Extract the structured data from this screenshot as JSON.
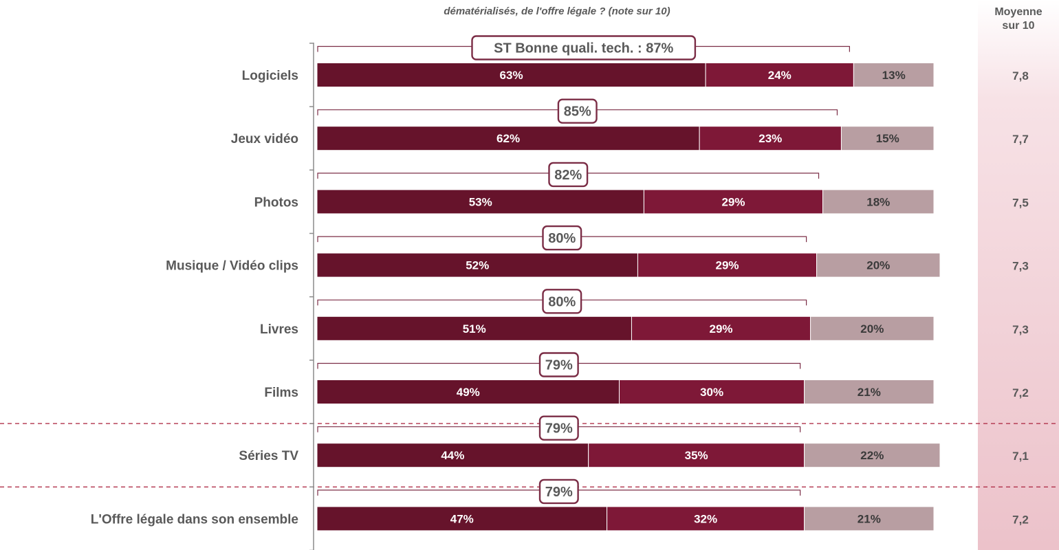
{
  "title": "dématérialisés, de l'offre légale ? (note sur 10)",
  "avg_header": "Moyenne\nsur 10",
  "colors": {
    "seg1": "#66132b",
    "seg2": "#7e1837",
    "seg3": "#b89ea2",
    "bracket": "#7b2d46",
    "label_box_border": "#7b2d46",
    "label_text": "#595959",
    "separator": "#b0304a"
  },
  "chart_data": {
    "type": "bar",
    "orientation": "horizontal",
    "stacked": true,
    "unit": "%",
    "xlim": [
      0,
      100
    ],
    "categories": [
      "Logiciels",
      "Jeux vidéo",
      "Photos",
      "Musique / Vidéo clips",
      "Livres",
      "Films",
      "Séries TV",
      "L'Offre légale dans son ensemble"
    ],
    "series": [
      {
        "values": [
          63,
          62,
          53,
          52,
          51,
          49,
          44,
          47
        ]
      },
      {
        "values": [
          24,
          23,
          29,
          29,
          29,
          30,
          35,
          32
        ]
      },
      {
        "values": [
          13,
          15,
          18,
          20,
          20,
          21,
          22,
          21
        ]
      }
    ],
    "subtotal_labels": [
      "ST Bonne quali. tech. : 87%",
      "85%",
      "82%",
      "80%",
      "80%",
      "79%",
      "79%",
      "79%"
    ],
    "subtotals": [
      87,
      85,
      82,
      80,
      80,
      79,
      79,
      79
    ],
    "averages": [
      "7,8",
      "7,7",
      "7,5",
      "7,3",
      "7,3",
      "7,2",
      "7,1",
      "7,2"
    ],
    "separators_after_rows": [
      5,
      6
    ],
    "grid": false
  }
}
